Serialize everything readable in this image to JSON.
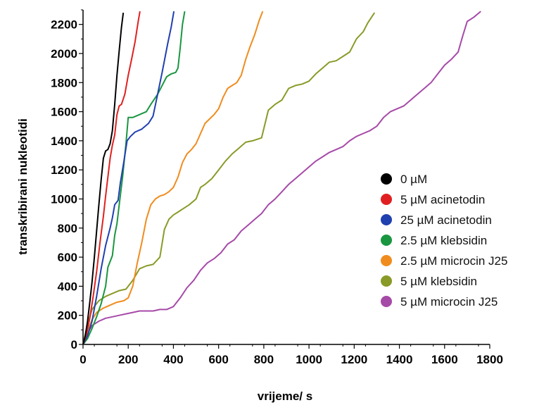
{
  "chart_data": {
    "type": "line",
    "title": "",
    "xlabel": "vrijeme/ s",
    "ylabel": "transkribirani nukleotidi",
    "xlim": [
      0,
      1800
    ],
    "ylim": [
      0,
      2300
    ],
    "xticks": [
      0,
      200,
      400,
      600,
      800,
      1000,
      1200,
      1400,
      1600,
      1800
    ],
    "yticks": [
      0,
      200,
      400,
      600,
      800,
      1000,
      1200,
      1400,
      1600,
      1800,
      2000,
      2200
    ],
    "grid": false,
    "legend_position": "right",
    "series": [
      {
        "name": "0 µM",
        "color": "#000000",
        "points": [
          [
            0,
            0
          ],
          [
            10,
            60
          ],
          [
            20,
            160
          ],
          [
            30,
            290
          ],
          [
            40,
            430
          ],
          [
            50,
            600
          ],
          [
            60,
            780
          ],
          [
            70,
            960
          ],
          [
            80,
            1130
          ],
          [
            90,
            1280
          ],
          [
            100,
            1330
          ],
          [
            110,
            1340
          ],
          [
            120,
            1380
          ],
          [
            130,
            1470
          ],
          [
            140,
            1650
          ],
          [
            150,
            1850
          ],
          [
            160,
            2020
          ],
          [
            170,
            2180
          ],
          [
            178,
            2280
          ]
        ]
      },
      {
        "name": "5 µM acinetodin",
        "color": "#e02020",
        "points": [
          [
            0,
            0
          ],
          [
            15,
            70
          ],
          [
            30,
            180
          ],
          [
            45,
            330
          ],
          [
            60,
            500
          ],
          [
            75,
            700
          ],
          [
            90,
            880
          ],
          [
            100,
            1020
          ],
          [
            110,
            1150
          ],
          [
            120,
            1280
          ],
          [
            130,
            1370
          ],
          [
            140,
            1440
          ],
          [
            150,
            1580
          ],
          [
            160,
            1640
          ],
          [
            170,
            1650
          ],
          [
            185,
            1720
          ],
          [
            200,
            1850
          ],
          [
            215,
            1960
          ],
          [
            230,
            2080
          ],
          [
            245,
            2230
          ],
          [
            252,
            2290
          ]
        ]
      },
      {
        "name": "25 µM acinetodin",
        "color": "#2040b0",
        "points": [
          [
            0,
            0
          ],
          [
            20,
            60
          ],
          [
            40,
            160
          ],
          [
            60,
            330
          ],
          [
            80,
            520
          ],
          [
            100,
            680
          ],
          [
            120,
            800
          ],
          [
            130,
            870
          ],
          [
            140,
            960
          ],
          [
            155,
            990
          ],
          [
            165,
            1110
          ],
          [
            180,
            1250
          ],
          [
            195,
            1400
          ],
          [
            210,
            1430
          ],
          [
            230,
            1460
          ],
          [
            260,
            1480
          ],
          [
            290,
            1520
          ],
          [
            310,
            1570
          ],
          [
            330,
            1720
          ],
          [
            350,
            1870
          ],
          [
            360,
            1950
          ],
          [
            375,
            2070
          ],
          [
            390,
            2180
          ],
          [
            402,
            2290
          ]
        ]
      },
      {
        "name": "2.5 µM klebsidin",
        "color": "#1a9640",
        "points": [
          [
            0,
            0
          ],
          [
            20,
            40
          ],
          [
            40,
            110
          ],
          [
            60,
            190
          ],
          [
            80,
            280
          ],
          [
            100,
            400
          ],
          [
            110,
            530
          ],
          [
            120,
            570
          ],
          [
            130,
            610
          ],
          [
            140,
            750
          ],
          [
            150,
            830
          ],
          [
            160,
            960
          ],
          [
            175,
            1150
          ],
          [
            190,
            1380
          ],
          [
            200,
            1560
          ],
          [
            220,
            1560
          ],
          [
            250,
            1580
          ],
          [
            280,
            1600
          ],
          [
            300,
            1650
          ],
          [
            330,
            1720
          ],
          [
            350,
            1780
          ],
          [
            370,
            1840
          ],
          [
            390,
            1860
          ],
          [
            410,
            1870
          ],
          [
            420,
            1900
          ],
          [
            430,
            2040
          ],
          [
            440,
            2200
          ],
          [
            450,
            2290
          ]
        ]
      },
      {
        "name": "2.5 µM microcin J25",
        "color": "#f08c1e",
        "points": [
          [
            0,
            0
          ],
          [
            20,
            90
          ],
          [
            40,
            170
          ],
          [
            60,
            220
          ],
          [
            90,
            250
          ],
          [
            120,
            270
          ],
          [
            150,
            290
          ],
          [
            180,
            300
          ],
          [
            200,
            320
          ],
          [
            220,
            400
          ],
          [
            240,
            560
          ],
          [
            260,
            700
          ],
          [
            280,
            860
          ],
          [
            300,
            960
          ],
          [
            320,
            1000
          ],
          [
            340,
            1020
          ],
          [
            360,
            1030
          ],
          [
            380,
            1050
          ],
          [
            400,
            1080
          ],
          [
            420,
            1150
          ],
          [
            440,
            1250
          ],
          [
            460,
            1310
          ],
          [
            480,
            1340
          ],
          [
            500,
            1380
          ],
          [
            520,
            1450
          ],
          [
            540,
            1520
          ],
          [
            560,
            1550
          ],
          [
            580,
            1580
          ],
          [
            600,
            1620
          ],
          [
            620,
            1700
          ],
          [
            640,
            1760
          ],
          [
            660,
            1780
          ],
          [
            680,
            1800
          ],
          [
            700,
            1850
          ],
          [
            720,
            1960
          ],
          [
            740,
            2050
          ],
          [
            760,
            2130
          ],
          [
            780,
            2230
          ],
          [
            795,
            2290
          ]
        ]
      },
      {
        "name": "5 µM klebsidin",
        "color": "#8a9a28",
        "points": [
          [
            0,
            0
          ],
          [
            20,
            140
          ],
          [
            40,
            240
          ],
          [
            70,
            300
          ],
          [
            100,
            330
          ],
          [
            130,
            350
          ],
          [
            160,
            370
          ],
          [
            190,
            380
          ],
          [
            220,
            440
          ],
          [
            250,
            520
          ],
          [
            280,
            540
          ],
          [
            310,
            550
          ],
          [
            340,
            600
          ],
          [
            360,
            790
          ],
          [
            380,
            860
          ],
          [
            400,
            890
          ],
          [
            420,
            910
          ],
          [
            440,
            930
          ],
          [
            470,
            960
          ],
          [
            500,
            1000
          ],
          [
            520,
            1080
          ],
          [
            540,
            1100
          ],
          [
            570,
            1140
          ],
          [
            600,
            1200
          ],
          [
            630,
            1260
          ],
          [
            660,
            1310
          ],
          [
            690,
            1350
          ],
          [
            720,
            1390
          ],
          [
            750,
            1400
          ],
          [
            790,
            1420
          ],
          [
            820,
            1610
          ],
          [
            850,
            1650
          ],
          [
            880,
            1680
          ],
          [
            910,
            1760
          ],
          [
            940,
            1780
          ],
          [
            970,
            1790
          ],
          [
            1000,
            1810
          ],
          [
            1030,
            1860
          ],
          [
            1060,
            1900
          ],
          [
            1090,
            1940
          ],
          [
            1120,
            1950
          ],
          [
            1150,
            1980
          ],
          [
            1180,
            2010
          ],
          [
            1210,
            2100
          ],
          [
            1240,
            2150
          ],
          [
            1260,
            2210
          ],
          [
            1290,
            2280
          ]
        ]
      },
      {
        "name": "5 µM microcin J25",
        "color": "#a64aa8",
        "points": [
          [
            0,
            0
          ],
          [
            20,
            80
          ],
          [
            40,
            130
          ],
          [
            70,
            160
          ],
          [
            100,
            180
          ],
          [
            130,
            190
          ],
          [
            160,
            200
          ],
          [
            190,
            210
          ],
          [
            220,
            220
          ],
          [
            250,
            230
          ],
          [
            280,
            230
          ],
          [
            310,
            230
          ],
          [
            340,
            240
          ],
          [
            370,
            240
          ],
          [
            400,
            260
          ],
          [
            430,
            320
          ],
          [
            460,
            390
          ],
          [
            490,
            440
          ],
          [
            520,
            510
          ],
          [
            550,
            560
          ],
          [
            580,
            590
          ],
          [
            610,
            630
          ],
          [
            640,
            690
          ],
          [
            670,
            720
          ],
          [
            700,
            780
          ],
          [
            730,
            820
          ],
          [
            760,
            860
          ],
          [
            790,
            900
          ],
          [
            820,
            960
          ],
          [
            850,
            1000
          ],
          [
            880,
            1050
          ],
          [
            910,
            1100
          ],
          [
            940,
            1140
          ],
          [
            970,
            1180
          ],
          [
            1000,
            1220
          ],
          [
            1030,
            1260
          ],
          [
            1060,
            1290
          ],
          [
            1090,
            1320
          ],
          [
            1120,
            1340
          ],
          [
            1150,
            1360
          ],
          [
            1180,
            1400
          ],
          [
            1210,
            1430
          ],
          [
            1240,
            1450
          ],
          [
            1270,
            1470
          ],
          [
            1300,
            1500
          ],
          [
            1330,
            1560
          ],
          [
            1360,
            1600
          ],
          [
            1390,
            1620
          ],
          [
            1420,
            1640
          ],
          [
            1450,
            1680
          ],
          [
            1480,
            1720
          ],
          [
            1510,
            1760
          ],
          [
            1540,
            1800
          ],
          [
            1570,
            1860
          ],
          [
            1600,
            1920
          ],
          [
            1630,
            1960
          ],
          [
            1660,
            2010
          ],
          [
            1680,
            2120
          ],
          [
            1700,
            2220
          ],
          [
            1730,
            2250
          ],
          [
            1760,
            2290
          ]
        ]
      }
    ]
  }
}
